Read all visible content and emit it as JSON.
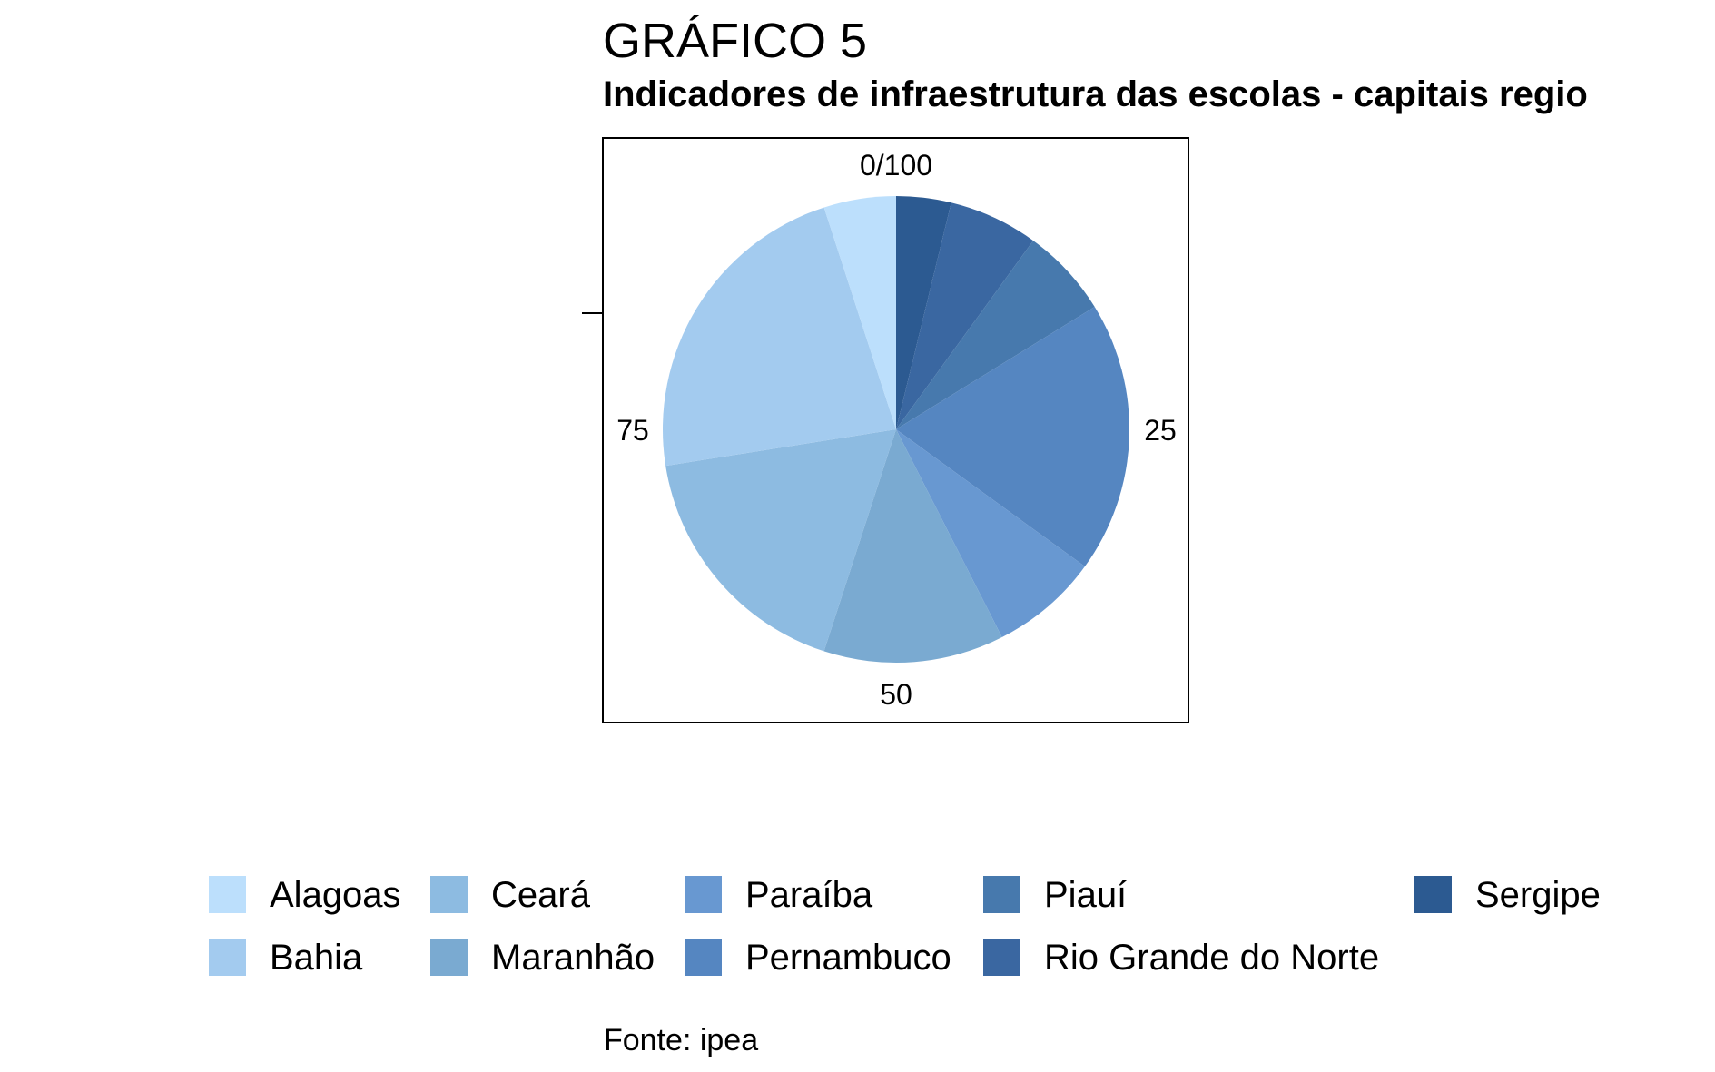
{
  "chart_data": {
    "type": "pie",
    "title": "GRÁFICO 5",
    "subtitle": "Indicadores de infraestrutura das escolas - capitais regio",
    "caption": "Fonte: ipea",
    "ticks": [
      "0/100",
      "25",
      "50",
      "75"
    ],
    "legend_position": "bottom",
    "slices": [
      {
        "name": "Sergipe",
        "value": 3.8,
        "color": "#2c5a91"
      },
      {
        "name": "Rio Grande do Norte",
        "value": 6.2,
        "color": "#3a67a1"
      },
      {
        "name": "Piauí",
        "value": 6.2,
        "color": "#4779ad"
      },
      {
        "name": "Pernambuco",
        "value": 18.8,
        "color": "#5586c1"
      },
      {
        "name": "Paraíba",
        "value": 7.5,
        "color": "#6898d1"
      },
      {
        "name": "Maranhão",
        "value": 12.5,
        "color": "#7aaad1"
      },
      {
        "name": "Ceará",
        "value": 17.5,
        "color": "#8dbbe1"
      },
      {
        "name": "Bahia",
        "value": 22.5,
        "color": "#a3cbef"
      },
      {
        "name": "Alagoas",
        "value": 5.0,
        "color": "#bcdffc"
      }
    ],
    "legend_order": [
      "Alagoas",
      "Bahia",
      "Ceará",
      "Maranhão",
      "Paraíba",
      "Pernambuco",
      "Piauí",
      "Rio Grande do Norte",
      "Sergipe"
    ]
  }
}
